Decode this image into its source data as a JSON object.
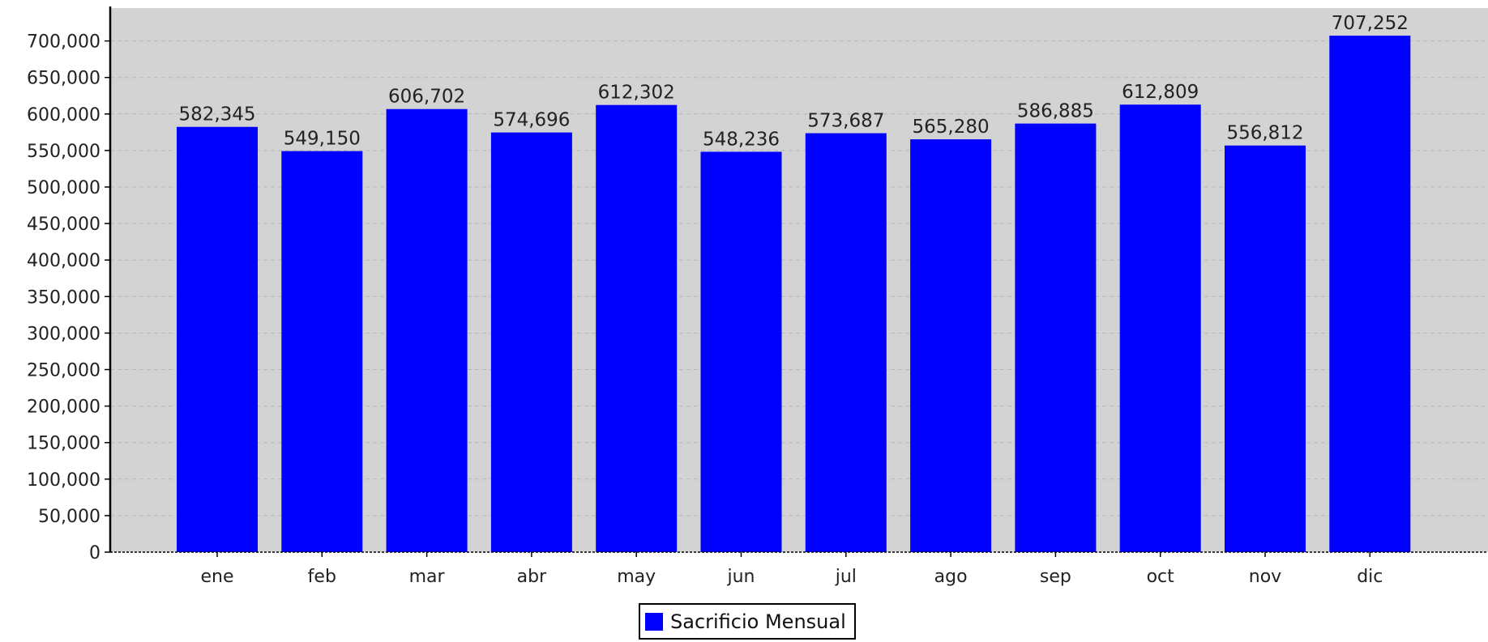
{
  "chart_data": {
    "type": "bar",
    "categories": [
      "ene",
      "feb",
      "mar",
      "abr",
      "may",
      "jun",
      "jul",
      "ago",
      "sep",
      "oct",
      "nov",
      "dic"
    ],
    "series": [
      {
        "name": "Sacrificio Mensual",
        "values": [
          582345,
          549150,
          606702,
          574696,
          612302,
          548236,
          573687,
          565280,
          586885,
          612809,
          556812,
          707252
        ],
        "data_labels": [
          "582,345",
          "549,150",
          "606,702",
          "574,696",
          "612,302",
          "548,236",
          "573,687",
          "565,280",
          "586,885",
          "612,809",
          "556,812",
          "707,252"
        ]
      }
    ],
    "ylim": [
      0,
      745000
    ],
    "y_ticks": [
      0,
      50000,
      100000,
      150000,
      200000,
      250000,
      300000,
      350000,
      400000,
      450000,
      500000,
      550000,
      600000,
      650000,
      700000
    ],
    "y_tick_labels": [
      "0",
      "50,000",
      "100,000",
      "150,000",
      "200,000",
      "250,000",
      "300,000",
      "350,000",
      "400,000",
      "450,000",
      "500,000",
      "550,000",
      "600,000",
      "650,000",
      "700,000"
    ],
    "title": "",
    "xlabel": "",
    "ylabel": "",
    "grid": true,
    "legend_position": "bottom-center",
    "colors": {
      "bar": "#0000ff",
      "plot_background": "#d3d3d3",
      "grid": "#b8b8b8",
      "axis": "#000000"
    }
  },
  "legend": {
    "label": "Sacrificio Mensual",
    "icon": "blue-square-swatch"
  }
}
